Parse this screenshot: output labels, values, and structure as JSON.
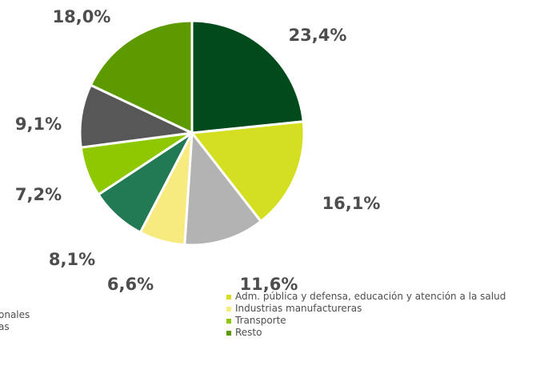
{
  "chart_data": {
    "type": "pie",
    "slices": [
      {
        "label": "",
        "value": 23.4,
        "value_label": "23,4%",
        "color": "#004a1c"
      },
      {
        "label": "Adm. pública y defensa, educación y atención a la salud",
        "value": 16.1,
        "value_label": "16,1%",
        "color": "#d5df22"
      },
      {
        "label": "",
        "value": 11.6,
        "value_label": "11,6%",
        "color": "#b3b3b3"
      },
      {
        "label": "Industrias manufactureras",
        "value": 6.6,
        "value_label": "6,6%",
        "color": "#f7ea7e"
      },
      {
        "label": "",
        "value": 8.1,
        "value_label": "8,1%",
        "color": "#227a55"
      },
      {
        "label": "Transporte",
        "value": 7.2,
        "value_label": "7,2%",
        "color": "#8dc800"
      },
      {
        "label": "",
        "value": 9.1,
        "value_label": "9,1%",
        "color": "#575757"
      },
      {
        "label": "Resto",
        "value": 18.0,
        "value_label": "18,0%",
        "color": "#5c9a00"
      }
    ]
  },
  "legend_left": [
    {
      "text": "onales",
      "color": "#227a55"
    },
    {
      "text": "as",
      "color": "#575757"
    }
  ],
  "legend_right": [
    {
      "text": "Adm. pública y defensa, educación y atención a la salud",
      "color": "#d5df22"
    },
    {
      "text": "Industrias manufactureras",
      "color": "#f7ea7e"
    },
    {
      "text": "Transporte",
      "color": "#8dc800"
    },
    {
      "text": "Resto",
      "color": "#5c9a00"
    }
  ]
}
